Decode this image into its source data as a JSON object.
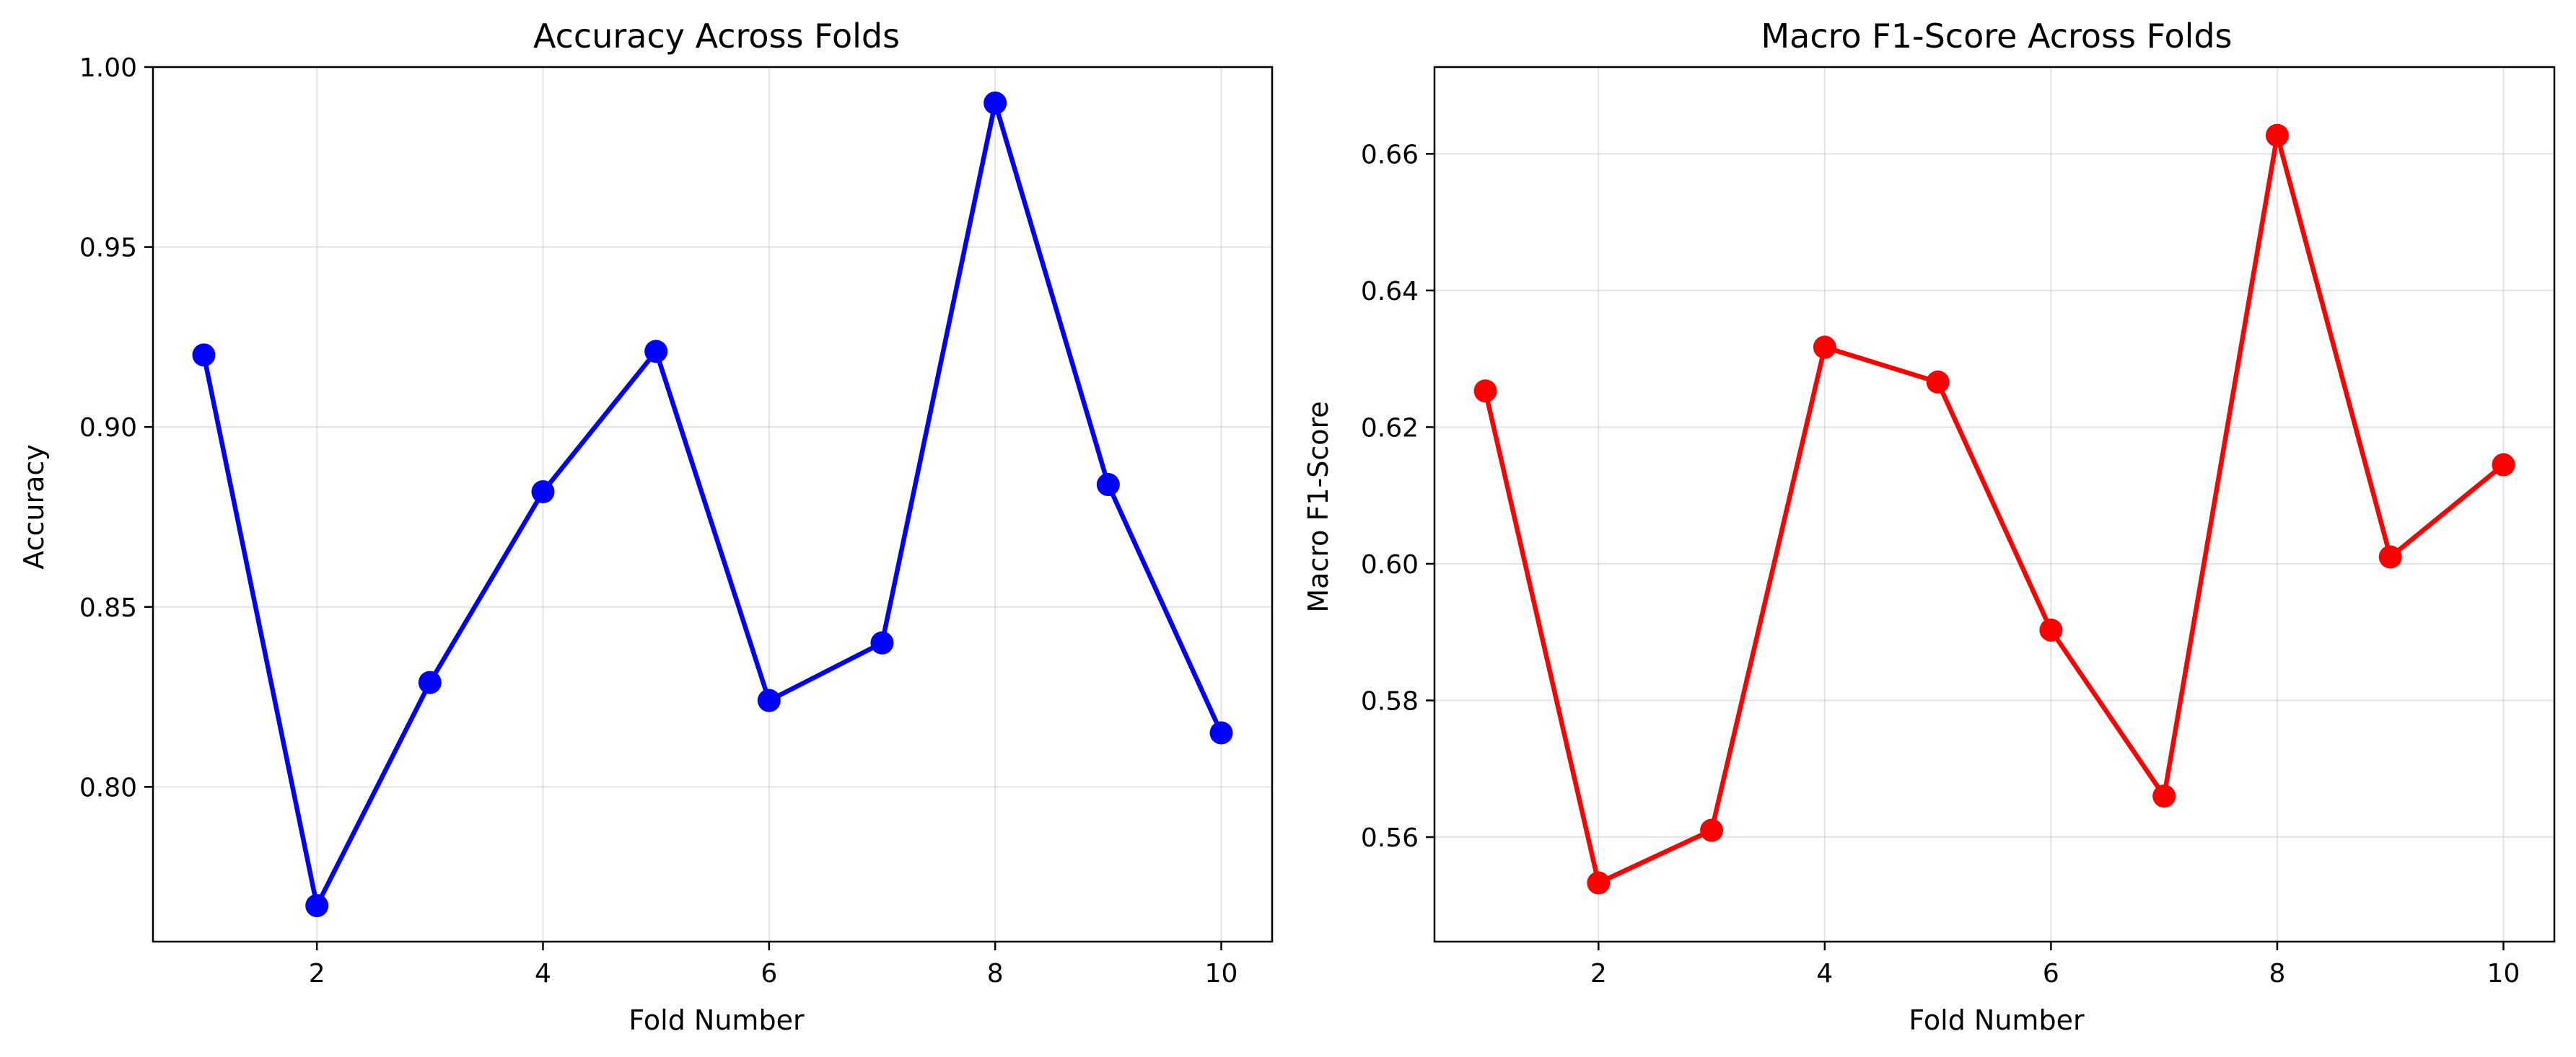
{
  "chart_data": [
    {
      "type": "line",
      "title": "Accuracy Across Folds",
      "xlabel": "Fold Number",
      "ylabel": "Accuracy",
      "x": [
        1,
        2,
        3,
        4,
        5,
        6,
        7,
        8,
        9,
        10
      ],
      "series": [
        {
          "values": [
            0.92,
            0.767,
            0.829,
            0.882,
            0.921,
            0.824,
            0.84,
            0.99,
            0.884,
            0.815
          ],
          "color": "#0000ff"
        }
      ],
      "xlim": [
        0.55,
        10.45
      ],
      "ylim": [
        0.757,
        1.0
      ],
      "xticks": [
        2,
        4,
        6,
        8,
        10
      ],
      "yticks": [
        0.8,
        0.85,
        0.9,
        0.95,
        1.0
      ],
      "ytick_labels": [
        "0.80",
        "0.85",
        "0.90",
        "0.95",
        "1.00"
      ],
      "grid": true,
      "marker": "circle"
    },
    {
      "type": "line",
      "title": "Macro F1-Score Across Folds",
      "xlabel": "Fold Number",
      "ylabel": "Macro F1-Score",
      "x": [
        1,
        2,
        3,
        4,
        5,
        6,
        7,
        8,
        9,
        10
      ],
      "series": [
        {
          "values": [
            0.6253,
            0.5533,
            0.561,
            0.6317,
            0.6266,
            0.5903,
            0.566,
            0.6627,
            0.601,
            0.6145
          ],
          "color": "#ff0000"
        }
      ],
      "xlim": [
        0.55,
        10.45
      ],
      "ylim": [
        0.5447,
        0.6727
      ],
      "xticks": [
        2,
        4,
        6,
        8,
        10
      ],
      "yticks": [
        0.56,
        0.58,
        0.6,
        0.62,
        0.64,
        0.66
      ],
      "ytick_labels": [
        "0.56",
        "0.58",
        "0.60",
        "0.62",
        "0.64",
        "0.66"
      ],
      "grid": true,
      "marker": "circle"
    }
  ]
}
